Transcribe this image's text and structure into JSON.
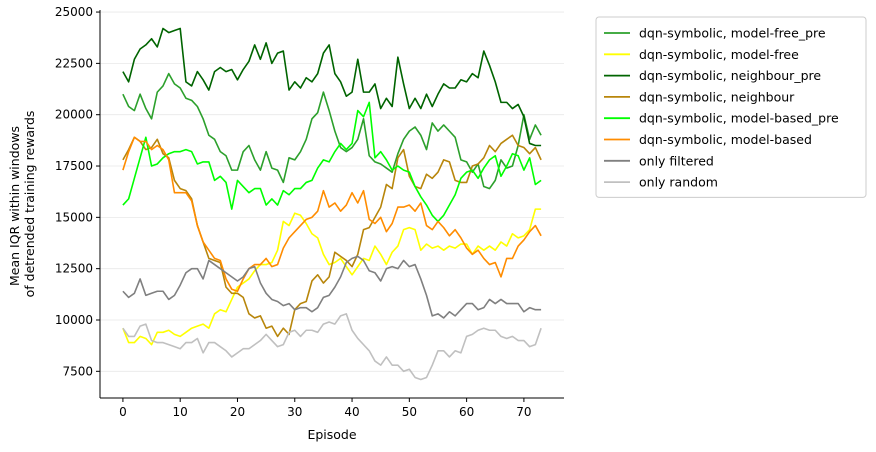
{
  "chart_data": {
    "type": "line",
    "title": "",
    "xlabel": "Episode",
    "ylabel_lines": [
      "Mean IQR within windows",
      "of detrended training rewards"
    ],
    "xlim": [
      -4,
      77
    ],
    "ylim": [
      6200,
      25100
    ],
    "xticks": [
      0,
      10,
      20,
      30,
      40,
      50,
      60,
      70
    ],
    "yticks": [
      7500,
      10000,
      12500,
      15000,
      17500,
      20000,
      22500,
      25000
    ],
    "grid": "horizontal",
    "legend_position": "outside-right",
    "x": [
      0,
      1,
      2,
      3,
      4,
      5,
      6,
      7,
      8,
      9,
      10,
      11,
      12,
      13,
      14,
      15,
      16,
      17,
      18,
      19,
      20,
      21,
      22,
      23,
      24,
      25,
      26,
      27,
      28,
      29,
      30,
      31,
      32,
      33,
      34,
      35,
      36,
      37,
      38,
      39,
      40,
      41,
      42,
      43,
      44,
      45,
      46,
      47,
      48,
      49,
      50,
      51,
      52,
      53,
      54,
      55,
      56,
      57,
      58,
      59,
      60,
      61,
      62,
      63,
      64,
      65,
      66,
      67,
      68,
      69,
      70,
      71,
      72,
      73
    ],
    "series": [
      {
        "name": "dqn-symbolic, model-free_pre",
        "color": "#2ca02c",
        "values": [
          21000,
          20400,
          20200,
          21000,
          20300,
          19800,
          21100,
          21400,
          22000,
          21500,
          21300,
          20800,
          20700,
          20400,
          19800,
          19000,
          18800,
          18200,
          18000,
          17300,
          17300,
          18200,
          18500,
          17800,
          17300,
          18200,
          17400,
          17300,
          16700,
          17900,
          17800,
          18200,
          18800,
          19800,
          20100,
          21100,
          20200,
          19200,
          18400,
          18200,
          18400,
          18800,
          19800,
          18000,
          17700,
          17600,
          17400,
          17200,
          18100,
          18800,
          19200,
          19400,
          19000,
          18300,
          19600,
          19200,
          19500,
          19200,
          18900,
          17800,
          17700,
          17200,
          17600,
          16500,
          16400,
          16800,
          17800,
          17400,
          17500,
          18500,
          20000,
          18800,
          19500,
          19000
        ]
      },
      {
        "name": "dqn-symbolic, model-free",
        "color": "#ffff00",
        "values": [
          9600,
          8900,
          8900,
          9200,
          9100,
          8800,
          9400,
          9400,
          9500,
          9300,
          9200,
          9400,
          9600,
          9700,
          9800,
          9600,
          10300,
          10500,
          10400,
          11000,
          11600,
          11800,
          12000,
          12400,
          12700,
          12700,
          12800,
          13400,
          14800,
          14600,
          15200,
          15100,
          14700,
          14200,
          14000,
          13200,
          12700,
          12800,
          13000,
          12600,
          12200,
          12600,
          13000,
          12900,
          13600,
          13200,
          12700,
          13300,
          13600,
          14400,
          14500,
          14400,
          13400,
          13700,
          13500,
          13600,
          13400,
          13600,
          13500,
          13700,
          13700,
          13200,
          13600,
          13400,
          13600,
          13400,
          13800,
          13600,
          14200,
          14000,
          14100,
          14400,
          15400,
          15400
        ]
      },
      {
        "name": "dqn-symbolic, neighbour_pre",
        "color": "#006400",
        "values": [
          22100,
          21600,
          22700,
          23200,
          23400,
          23700,
          23300,
          24200,
          24000,
          24100,
          24200,
          21600,
          21400,
          22100,
          21700,
          21200,
          22100,
          22300,
          22100,
          22200,
          21700,
          22200,
          22600,
          23400,
          22700,
          23500,
          22500,
          23000,
          23100,
          21200,
          21600,
          21300,
          21800,
          21600,
          22000,
          23000,
          23400,
          22000,
          21600,
          20900,
          21100,
          22700,
          21100,
          21100,
          21500,
          20300,
          20800,
          20400,
          22800,
          21500,
          20300,
          20800,
          20300,
          21000,
          20400,
          21000,
          21500,
          21300,
          21300,
          21700,
          21600,
          22000,
          21800,
          23100,
          22400,
          21600,
          20600,
          20600,
          20300,
          20500,
          19900,
          18600,
          18500,
          18500
        ]
      },
      {
        "name": "dqn-symbolic, neighbour",
        "color": "#b8860b",
        "values": [
          17800,
          18300,
          18900,
          18700,
          18300,
          18400,
          18800,
          18100,
          17900,
          16800,
          16400,
          16300,
          15900,
          14600,
          13800,
          13000,
          12900,
          12800,
          11600,
          11300,
          11300,
          11100,
          10300,
          10100,
          10200,
          9600,
          9700,
          9200,
          9600,
          9300,
          10500,
          10800,
          10900,
          11900,
          12200,
          11800,
          12100,
          13300,
          13100,
          12900,
          12600,
          13200,
          14400,
          14500,
          15000,
          15500,
          16600,
          16400,
          17900,
          18300,
          17000,
          16500,
          16400,
          17100,
          16900,
          17200,
          17800,
          17700,
          16800,
          16700,
          16700,
          17500,
          17600,
          17900,
          18500,
          18200,
          18600,
          18800,
          19000,
          18500,
          18400,
          18100,
          18400,
          17800
        ]
      },
      {
        "name": "dqn-symbolic, model-based_pre",
        "color": "#00ff00",
        "values": [
          15600,
          15900,
          16900,
          17900,
          18900,
          17500,
          17600,
          17900,
          18100,
          18200,
          18200,
          18300,
          18200,
          17600,
          17700,
          17700,
          16800,
          17000,
          16700,
          15400,
          16800,
          16500,
          16200,
          16400,
          16400,
          15600,
          15900,
          15600,
          16300,
          16100,
          16400,
          16400,
          16700,
          16800,
          17400,
          17800,
          17700,
          18200,
          18600,
          18300,
          18600,
          20200,
          19900,
          20600,
          17900,
          18200,
          17800,
          17300,
          17500,
          17300,
          17200,
          16500,
          16000,
          15600,
          15100,
          14800,
          15100,
          15600,
          16100,
          16900,
          17200,
          17300,
          16900,
          17400,
          17800,
          18000,
          17000,
          17500,
          18100,
          18000,
          17300,
          17900,
          16600,
          16800
        ]
      },
      {
        "name": "dqn-symbolic, model-based",
        "color": "#ff8c00",
        "values": [
          17300,
          18200,
          18900,
          18700,
          18700,
          18300,
          18500,
          18300,
          17800,
          16200,
          16200,
          16200,
          15800,
          14600,
          13800,
          13400,
          13000,
          12900,
          12000,
          11500,
          11400,
          12000,
          12500,
          12700,
          12700,
          13000,
          12600,
          12700,
          13500,
          14000,
          14300,
          14600,
          14900,
          15000,
          15300,
          16300,
          15500,
          15700,
          15300,
          15600,
          16200,
          15700,
          16300,
          14900,
          14700,
          15000,
          14300,
          14700,
          15500,
          15500,
          15600,
          15300,
          15700,
          14600,
          14400,
          14800,
          14500,
          14100,
          14400,
          14000,
          13500,
          13200,
          13400,
          13000,
          12700,
          12800,
          12100,
          13000,
          13000,
          13600,
          13900,
          14300,
          14600,
          14100
        ]
      },
      {
        "name": "only filtered",
        "color": "#808080",
        "values": [
          11400,
          11100,
          11300,
          12000,
          11200,
          11300,
          11400,
          11400,
          11000,
          11200,
          11700,
          12300,
          12500,
          12500,
          12000,
          12900,
          12700,
          12500,
          12300,
          12100,
          11900,
          12100,
          12500,
          12600,
          11800,
          11300,
          11000,
          10900,
          10700,
          10800,
          10500,
          10600,
          10600,
          10400,
          10600,
          11100,
          11200,
          11600,
          12100,
          12800,
          13000,
          13100,
          12900,
          12400,
          12300,
          11900,
          12500,
          12600,
          12500,
          12900,
          12600,
          12700,
          12000,
          11200,
          10200,
          10300,
          10100,
          10400,
          10200,
          10500,
          10800,
          10800,
          10500,
          10600,
          11000,
          10800,
          11000,
          10800,
          10800,
          10800,
          10400,
          10600,
          10500,
          10500
        ]
      },
      {
        "name": "only random",
        "color": "#c0c0c0",
        "values": [
          9600,
          9200,
          9200,
          9700,
          9800,
          9000,
          8900,
          8900,
          8800,
          8700,
          8600,
          8900,
          8900,
          9100,
          8400,
          8900,
          8900,
          8700,
          8500,
          8200,
          8400,
          8600,
          8600,
          8800,
          9000,
          9300,
          9000,
          8700,
          8800,
          9400,
          9500,
          9200,
          9500,
          9500,
          9400,
          9800,
          9900,
          9800,
          10200,
          10300,
          9500,
          9100,
          8800,
          8500,
          8000,
          7800,
          8200,
          7800,
          7800,
          7500,
          7600,
          7200,
          7100,
          7200,
          7800,
          8500,
          8500,
          8200,
          8500,
          8400,
          9200,
          9300,
          9500,
          9600,
          9500,
          9500,
          9200,
          9100,
          9200,
          9000,
          9000,
          8700,
          8800,
          9600
        ]
      }
    ]
  }
}
